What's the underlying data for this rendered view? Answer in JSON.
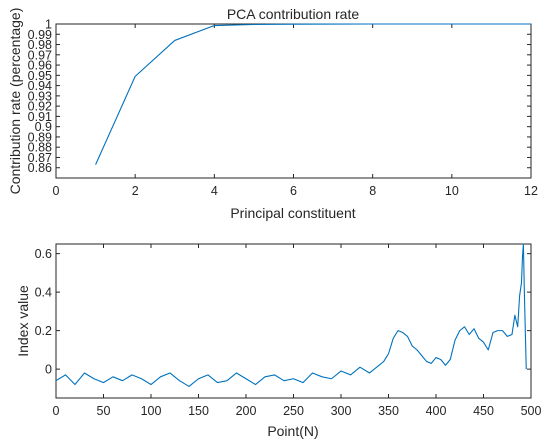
{
  "chart_data": [
    {
      "type": "line",
      "title": "PCA contribution rate",
      "xlabel": "Principal constituent",
      "ylabel": "Contribution rate (percentage)",
      "xlim": [
        0,
        12
      ],
      "ylim": [
        0.85,
        1.0
      ],
      "x_ticks": [
        0,
        2,
        4,
        6,
        8,
        10,
        12
      ],
      "y_ticks": [
        0.86,
        0.87,
        0.88,
        0.89,
        0.9,
        0.91,
        0.92,
        0.93,
        0.94,
        0.95,
        0.96,
        0.97,
        0.98,
        0.99,
        1
      ],
      "grid": false,
      "color": "#0072BD",
      "series": [
        {
          "x": [
            1,
            2,
            3,
            4,
            5,
            6,
            7,
            8,
            9,
            10,
            11,
            12
          ],
          "y": [
            0.863,
            0.949,
            0.984,
            0.9985,
            0.9995,
            0.9998,
            0.9999,
            1.0,
            1.0,
            1.0,
            1.0,
            1.0
          ]
        }
      ]
    },
    {
      "type": "line",
      "title": "",
      "xlabel": "Point(N)",
      "ylabel": "Index value",
      "xlim": [
        0,
        500
      ],
      "ylim": [
        -0.15,
        0.65
      ],
      "x_ticks": [
        0,
        50,
        100,
        150,
        200,
        250,
        300,
        350,
        400,
        450,
        500
      ],
      "y_ticks": [
        0,
        0.2,
        0.4,
        0.6
      ],
      "grid": false,
      "color": "#0072BD",
      "series": [
        {
          "x": [
            0,
            10,
            20,
            30,
            40,
            50,
            60,
            70,
            80,
            90,
            100,
            110,
            120,
            130,
            140,
            150,
            160,
            170,
            180,
            190,
            200,
            210,
            220,
            230,
            240,
            250,
            260,
            270,
            280,
            290,
            300,
            310,
            320,
            330,
            340,
            345,
            350,
            355,
            360,
            365,
            370,
            375,
            380,
            385,
            390,
            395,
            400,
            405,
            410,
            415,
            420,
            425,
            430,
            435,
            440,
            445,
            450,
            455,
            460,
            465,
            470,
            475,
            480,
            483,
            486,
            488,
            490,
            491,
            492,
            493,
            494,
            495
          ],
          "y": [
            -0.06,
            -0.03,
            -0.08,
            -0.02,
            -0.05,
            -0.07,
            -0.04,
            -0.06,
            -0.03,
            -0.05,
            -0.08,
            -0.04,
            -0.02,
            -0.06,
            -0.09,
            -0.05,
            -0.03,
            -0.07,
            -0.06,
            -0.02,
            -0.05,
            -0.08,
            -0.04,
            -0.03,
            -0.06,
            -0.05,
            -0.07,
            -0.02,
            -0.04,
            -0.05,
            -0.01,
            -0.03,
            0.01,
            -0.02,
            0.02,
            0.04,
            0.08,
            0.16,
            0.2,
            0.19,
            0.17,
            0.12,
            0.1,
            0.07,
            0.04,
            0.03,
            0.06,
            0.05,
            0.02,
            0.05,
            0.15,
            0.2,
            0.22,
            0.18,
            0.21,
            0.16,
            0.14,
            0.1,
            0.19,
            0.2,
            0.2,
            0.17,
            0.18,
            0.28,
            0.22,
            0.38,
            0.45,
            0.58,
            0.65,
            0.4,
            0.2,
            0.0
          ]
        }
      ]
    }
  ]
}
